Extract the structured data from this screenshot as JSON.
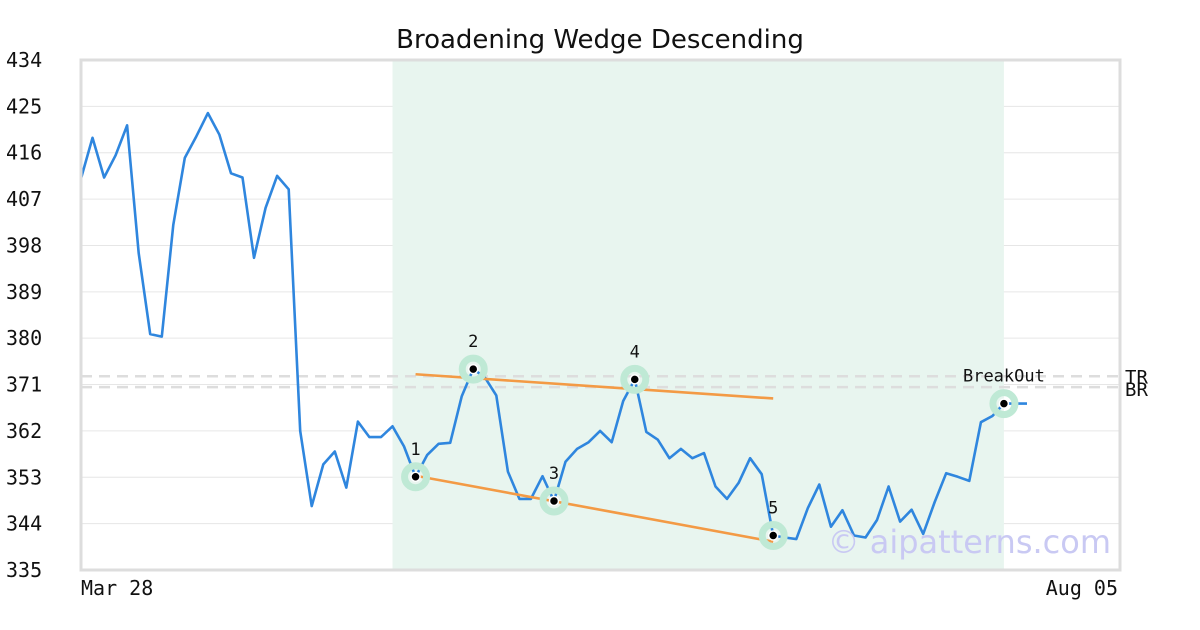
{
  "chart_data": {
    "type": "line",
    "title": "Broadening Wedge Descending",
    "xlabel": "",
    "ylabel": "",
    "ylim": [
      335,
      434
    ],
    "yticks": [
      434,
      425,
      416,
      407,
      398,
      389,
      380,
      371,
      362,
      353,
      344,
      335
    ],
    "xtick_labels": [
      "Mar 28",
      "Aug 05"
    ],
    "grid": true,
    "series_color": "#2f86de",
    "pattern_line_color": "#f39a45",
    "highlight_color": "#e8f5ef",
    "marker_halo_color": "#bfe9d5",
    "price": [
      411.0,
      418.9,
      411.2,
      415.5,
      421.3,
      396.5,
      380.8,
      380.3,
      402.0,
      415.0,
      419.2,
      423.7,
      419.5,
      412.0,
      411.2,
      395.6,
      405.3,
      411.5,
      408.9,
      362.0,
      347.4,
      355.5,
      358.0,
      351.0,
      363.8,
      360.8,
      360.8,
      362.9,
      359.0,
      353.1,
      357.3,
      359.5,
      359.7,
      368.7,
      374.0,
      372.4,
      368.9,
      354.1,
      348.8,
      348.8,
      353.2,
      348.4,
      356.0,
      358.5,
      359.8,
      362.0,
      359.8,
      367.8,
      372.0,
      361.8,
      360.3,
      356.7,
      358.5,
      356.7,
      357.7,
      351.2,
      348.8,
      351.9,
      356.7,
      353.6,
      341.7,
      341.3,
      341.0,
      347.0,
      351.6,
      343.4,
      346.6,
      341.7,
      341.3,
      344.7,
      351.2,
      344.4,
      346.7,
      342.0,
      348.2,
      353.8,
      353.1,
      352.3,
      363.7,
      364.9,
      367.3,
      367.3,
      367.3
    ],
    "highlight_range": [
      27,
      80
    ],
    "points": [
      {
        "label": "1",
        "index": 29,
        "value": 353.1
      },
      {
        "label": "2",
        "index": 34,
        "value": 374.0
      },
      {
        "label": "3",
        "index": 41,
        "value": 348.4
      },
      {
        "label": "4",
        "index": 48,
        "value": 372.0
      },
      {
        "label": "5",
        "index": 60,
        "value": 341.7
      },
      {
        "label": "BreakOut",
        "index": 80,
        "value": 367.3
      }
    ],
    "upper_line": {
      "from": [
        29,
        373.0
      ],
      "to": [
        60,
        368.3
      ]
    },
    "lower_line": {
      "from": [
        29,
        353.3
      ],
      "to": [
        60,
        340.5
      ]
    },
    "reference_lines": [
      {
        "label": "TR",
        "value": 372.6
      },
      {
        "label": "BR",
        "value": 370.5
      }
    ]
  },
  "watermark": "© aipatterns.com"
}
